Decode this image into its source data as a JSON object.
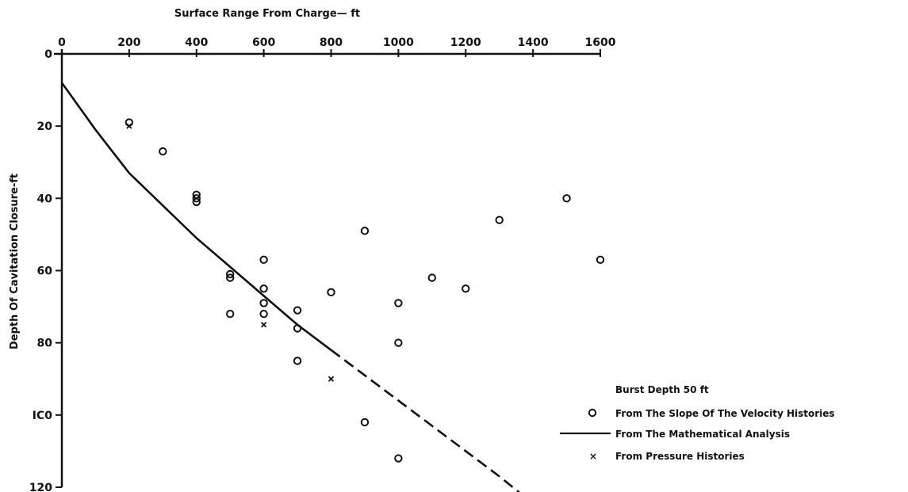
{
  "chart_data": {
    "type": "scatter",
    "xlabel": "Surface Range From Charge— ft",
    "ylabel": "Depth Of Cavitation Closure-ft",
    "xlim": [
      0,
      1600
    ],
    "ylim": [
      0,
      120
    ],
    "y_inverted": true,
    "x_axis_position": "top",
    "grid": false,
    "x_ticks": [
      0,
      200,
      400,
      600,
      800,
      1000,
      1200,
      1400,
      1600
    ],
    "x_tick_labels": [
      "0",
      "200",
      "400",
      "600",
      "800",
      "1000",
      "1200",
      "1400",
      "1600"
    ],
    "y_ticks": [
      0,
      20,
      40,
      60,
      80,
      100,
      120
    ],
    "y_tick_labels": [
      "0",
      "20",
      "40",
      "60",
      "80",
      "IC0",
      "120"
    ],
    "legend_title": "Burst Depth 50 ft",
    "legend_position": "bottom-right",
    "series": [
      {
        "name": "From The Slope Of The Velocity Histories",
        "marker": "circle",
        "points": [
          [
            200,
            19
          ],
          [
            300,
            27
          ],
          [
            400,
            39
          ],
          [
            400,
            40
          ],
          [
            400,
            41
          ],
          [
            500,
            61
          ],
          [
            500,
            62
          ],
          [
            500,
            72
          ],
          [
            600,
            57
          ],
          [
            600,
            65
          ],
          [
            600,
            69
          ],
          [
            600,
            72
          ],
          [
            700,
            71
          ],
          [
            700,
            76
          ],
          [
            700,
            85
          ],
          [
            800,
            66
          ],
          [
            900,
            49
          ],
          [
            900,
            102
          ],
          [
            1000,
            69
          ],
          [
            1000,
            80
          ],
          [
            1000,
            112
          ],
          [
            1100,
            62
          ],
          [
            1200,
            65
          ],
          [
            1300,
            46
          ],
          [
            1500,
            40
          ],
          [
            1600,
            57
          ]
        ]
      },
      {
        "name": "From The Mathematical Analysis",
        "marker": "line",
        "solid_points": [
          [
            0,
            8
          ],
          [
            100,
            21
          ],
          [
            200,
            33
          ],
          [
            300,
            42
          ],
          [
            400,
            51
          ],
          [
            500,
            59
          ],
          [
            600,
            67
          ],
          [
            700,
            75
          ],
          [
            800,
            82
          ]
        ],
        "dashed_points": [
          [
            800,
            82
          ],
          [
            900,
            89
          ],
          [
            1000,
            96
          ],
          [
            1100,
            103
          ],
          [
            1200,
            110
          ],
          [
            1300,
            117
          ],
          [
            1380,
            123
          ]
        ]
      },
      {
        "name": "From Pressure Histories",
        "marker": "x",
        "points": [
          [
            200,
            20
          ],
          [
            600,
            75
          ],
          [
            800,
            90
          ]
        ]
      }
    ]
  }
}
